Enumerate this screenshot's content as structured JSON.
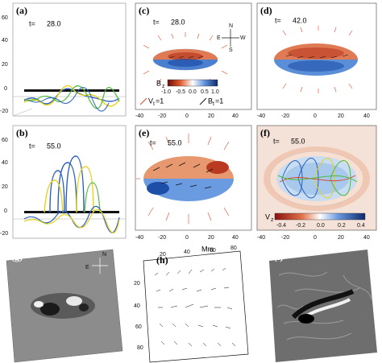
{
  "panels": {
    "a": {
      "label": "(a)",
      "time_prefix": "t=",
      "time": "28.0",
      "yticks": [
        "60",
        "40",
        "20",
        "0",
        "-20"
      ]
    },
    "b": {
      "label": "(b)",
      "time_prefix": "t=",
      "time": "55.0",
      "yticks": [
        "60",
        "40",
        "20",
        "0",
        "-20"
      ]
    },
    "c": {
      "label": "(c)",
      "time_prefix": "t=",
      "time": "28.0",
      "xticks": [
        "-40",
        "-20",
        "0",
        "20",
        "40"
      ],
      "yticks": [
        "20",
        "0",
        "-20"
      ],
      "colorbar_label": "B",
      "colorbar_sub": "z",
      "colorbar_ticks": [
        "-1.0",
        "-0.5",
        "0.0",
        "0.5",
        "1.0"
      ],
      "legend_v": "V",
      "legend_v_sub": "t",
      "legend_v_val": "=1",
      "legend_b": "B",
      "legend_b_sub": "t",
      "legend_b_val": "=1",
      "compass": {
        "n": "N",
        "s": "S",
        "e": "E",
        "w": "W"
      }
    },
    "d": {
      "label": "(d)",
      "time_prefix": "t=",
      "time": "42.0",
      "xticks": [
        "-40",
        "-20",
        "0",
        "20",
        "40"
      ],
      "yticks": [
        "20",
        "0",
        "-20"
      ]
    },
    "e": {
      "label": "(e)",
      "time_prefix": "t=",
      "time": "55.0",
      "xticks": [
        "-40",
        "-20",
        "0",
        "20",
        "40"
      ],
      "yticks": [
        "20",
        "0",
        "-20"
      ]
    },
    "f": {
      "label": "(f)",
      "time_prefix": "t=",
      "time": "55.0",
      "xticks": [
        "-40",
        "-20",
        "0",
        "20",
        "40"
      ],
      "yticks": [
        "20",
        "0",
        "-20"
      ],
      "colorbar_label": "V",
      "colorbar_sub": "z",
      "colorbar_ticks": [
        "-0.4",
        "-0.2",
        "0.0",
        "0.2",
        "0.4"
      ]
    },
    "g": {
      "label": "(g)",
      "compass": {
        "n": "N",
        "e": "E"
      }
    },
    "h": {
      "label": "(h)",
      "axis_label": "Mm",
      "top_ticks": [
        "20",
        "40",
        "60",
        "80"
      ],
      "left_ticks": [
        "20",
        "40",
        "60",
        "80"
      ]
    },
    "i": {
      "label": "(i)"
    }
  },
  "colors": {
    "red": "#d8452a",
    "blue": "#2b5fb8",
    "yellow": "#e6d21a",
    "green": "#4fb83c"
  }
}
